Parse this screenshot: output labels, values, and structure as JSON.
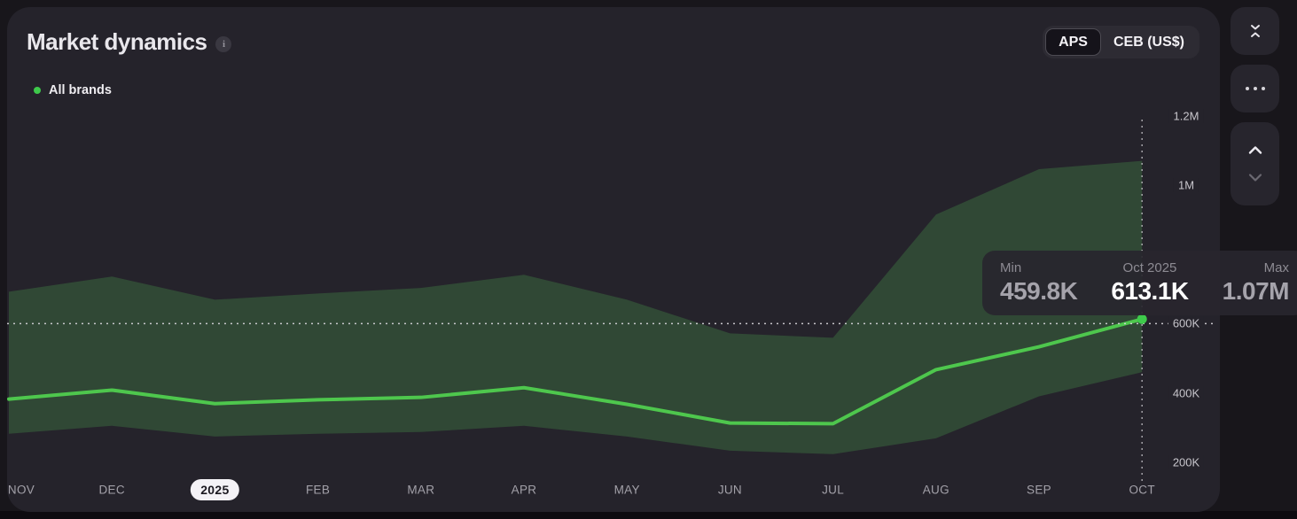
{
  "card": {
    "title": "Market dynamics",
    "legend": {
      "label": "All brands",
      "dot_color": "#3ec94b"
    },
    "unit_toggle": {
      "options": [
        {
          "label": "APS",
          "selected": true
        },
        {
          "label": "CEB (US$)",
          "selected": false
        }
      ]
    },
    "tooltip": {
      "columns": [
        {
          "label": "Min",
          "value": "459.8K"
        },
        {
          "label": "Oct 2025",
          "value": "613.1K"
        },
        {
          "label": "Max",
          "value": "1.07M"
        }
      ]
    },
    "chart_data": {
      "type": "line",
      "title": "Market dynamics — All brands with min/max band",
      "categories": [
        "NOV",
        "DEC",
        "2025",
        "FEB",
        "MAR",
        "APR",
        "MAY",
        "JUN",
        "JUL",
        "AUG",
        "SEP",
        "OCT"
      ],
      "x_pill_label": "2025",
      "series": [
        {
          "name": "All brands",
          "type": "line",
          "color": "#4ec74d",
          "values_k": [
            382,
            408,
            369,
            380,
            387,
            415,
            367,
            313,
            311,
            467,
            533,
            613.1
          ]
        },
        {
          "name": "Min–Max range",
          "type": "band",
          "color": "#304835",
          "max_values_k": [
            692,
            736,
            669,
            687,
            703,
            741,
            669,
            572,
            559,
            915,
            1046,
            1070
          ],
          "min_values_k": [
            282,
            305,
            274,
            282,
            287,
            305,
            274,
            233,
            223,
            269,
            390,
            459.8
          ]
        }
      ],
      "y_ticks": [
        {
          "label": "200K",
          "value_k": 200
        },
        {
          "label": "400K",
          "value_k": 400
        },
        {
          "label": "600K",
          "value_k": 600
        },
        {
          "label": "1M",
          "value_k": 1000
        },
        {
          "label": "1.2M",
          "value_k": 1200
        }
      ],
      "guide_value_k": 600,
      "ylim_k": [
        150,
        1250
      ],
      "legend_position": "top-left",
      "grid": "dotted horizontal guide at 600K, dotted vertical guide at OCT",
      "highlight": {
        "category": "OCT",
        "date": "Oct 2025",
        "value_k": 613.1,
        "min_k": 459.8,
        "max_k": 1070
      },
      "dot_color": "#3ecb4b"
    }
  },
  "side_controls": {
    "collapse_icon": "collapse-vertical-icon",
    "more_icon": "ellipsis-icon",
    "up_icon": "chevron-up-icon",
    "down_icon": "chevron-down-icon"
  }
}
